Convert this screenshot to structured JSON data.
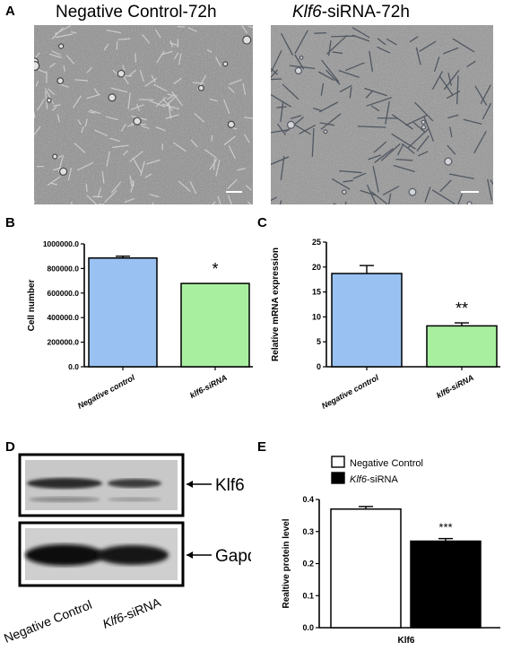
{
  "panels": {
    "A": {
      "letter": "A",
      "titles": [
        "Negative Control-72h",
        "Klf6-siRNA-72h"
      ],
      "title2_italic": "Klf6",
      "title2_rest": "-siRNA-72h"
    },
    "B": {
      "letter": "B"
    },
    "C": {
      "letter": "C"
    },
    "D": {
      "letter": "D",
      "band_labels": [
        "Klf6",
        "Gapdh"
      ],
      "lane_labels": [
        "Negative Control",
        "Klf6-siRNA"
      ],
      "lane2_italic": "Klf6",
      "lane2_rest": "-siRNA"
    },
    "E": {
      "letter": "E"
    }
  },
  "colors": {
    "blue_bar": "#99c2f2",
    "green_bar": "#a8f0a0",
    "black_bar": "#000000",
    "white_bar": "#ffffff",
    "micro_bg": "#8c8c8c"
  },
  "chart_data": [
    {
      "panel": "B",
      "type": "bar",
      "categories": [
        "Negative control",
        "klf6-siRNA"
      ],
      "values": [
        885000,
        678000
      ],
      "errors": [
        15000,
        0
      ],
      "bar_colors": [
        "#99c2f2",
        "#a8f0a0"
      ],
      "ylabel": "Cell number",
      "ylim": [
        0,
        1000000
      ],
      "yticks": [
        0,
        200000,
        400000,
        600000,
        800000,
        1000000
      ],
      "ytick_labels": [
        "0.0",
        "200000.0",
        "400000.0",
        "600000.0",
        "800000.0",
        "1000000.0"
      ],
      "significance": [
        "",
        "*"
      ],
      "legend": "none",
      "grid": false
    },
    {
      "panel": "C",
      "type": "bar",
      "categories": [
        "Negative control",
        "klf6-siRNA"
      ],
      "values": [
        18.7,
        8.2
      ],
      "errors": [
        1.6,
        0.6
      ],
      "bar_colors": [
        "#99c2f2",
        "#a8f0a0"
      ],
      "ylabel": "Relative mRNA expression",
      "ylim": [
        0,
        25
      ],
      "yticks": [
        0,
        5,
        10,
        15,
        20,
        25
      ],
      "ytick_labels": [
        "0",
        "5",
        "10",
        "15",
        "20",
        "25"
      ],
      "significance": [
        "",
        "**"
      ],
      "legend": "none",
      "grid": false
    },
    {
      "panel": "E",
      "type": "bar",
      "categories": [
        "Klf6"
      ],
      "series": [
        {
          "name": "Negative Control",
          "values": [
            0.37
          ],
          "errors": [
            0.008
          ],
          "color": "#ffffff"
        },
        {
          "name": "Klf6-siRNA",
          "values": [
            0.27
          ],
          "errors": [
            0.008
          ],
          "color": "#000000"
        }
      ],
      "legend_names": [
        "Negative Control",
        "Klf6-siRNA"
      ],
      "legend_italic": [
        "",
        "Klf6"
      ],
      "legend_rest": [
        "Negative Control",
        "-siRNA"
      ],
      "ylabel": "Realtive protein level",
      "ylim": [
        0,
        0.4
      ],
      "yticks": [
        0,
        0.1,
        0.2,
        0.3,
        0.4
      ],
      "ytick_labels": [
        "0.0",
        "0.1",
        "0.2",
        "0.3",
        "0.4"
      ],
      "significance": [
        "",
        "***"
      ],
      "legend": "top-left",
      "grid": false
    }
  ]
}
